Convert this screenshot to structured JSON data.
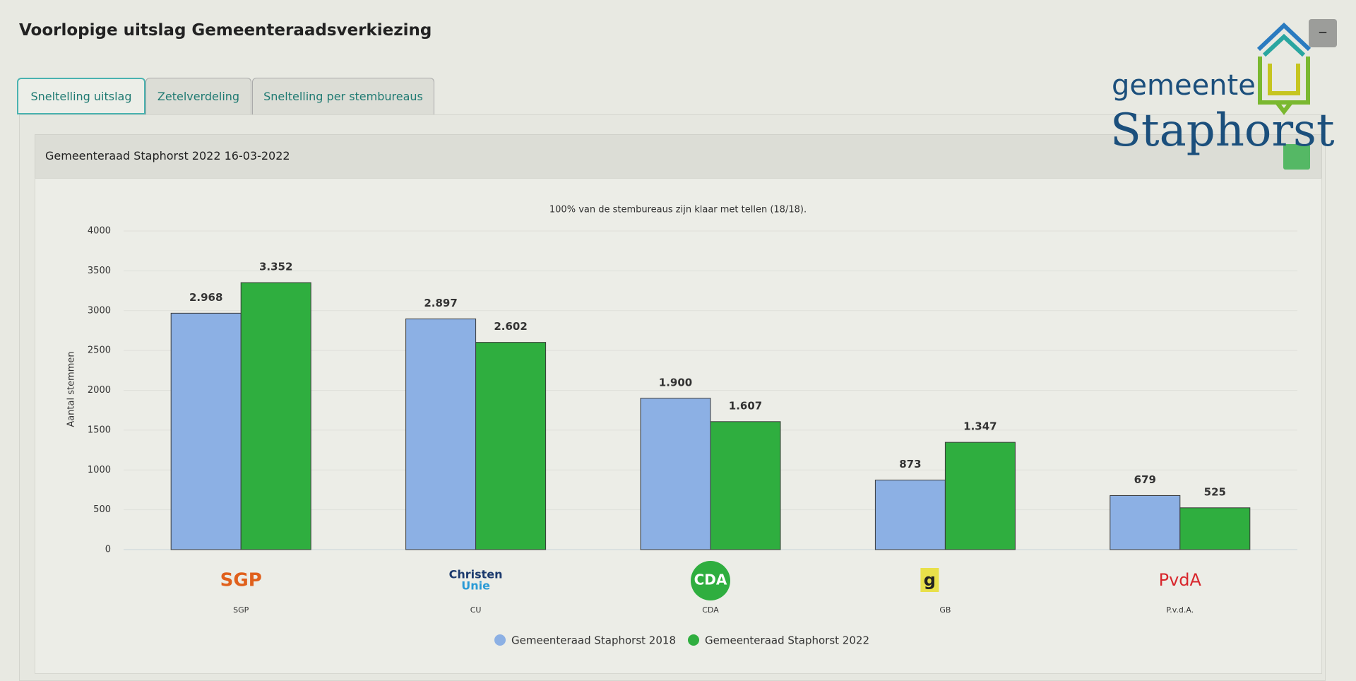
{
  "header": {
    "title": "Voorlopige uitslag Gemeenteraadsverkiezing"
  },
  "tabs": [
    "Sneltelling uitslag",
    "Zetelverdeling",
    "Sneltelling per stembureaus"
  ],
  "brand": {
    "line1": "gemeente",
    "line2": "Staphorst"
  },
  "panel": {
    "title": "Gemeenteraad Staphorst 2022 16-03-2022"
  },
  "chart_data": {
    "type": "bar",
    "subtitle": "100% van de stembureaus zijn klaar met tellen (18/18).",
    "y_label": "Aantal stemmen",
    "categories": [
      "SGP",
      "CU",
      "CDA",
      "GB",
      "P.v.d.A."
    ],
    "category_logos": [
      [
        "SGP"
      ],
      [
        "Christen",
        "Unie"
      ],
      [
        "CDA"
      ],
      [
        "g"
      ],
      [
        "PvdA"
      ]
    ],
    "series": [
      {
        "name": "Gemeenteraad Staphorst 2018",
        "color": "#8cb0e4",
        "values": [
          2968,
          2897,
          1900,
          873,
          679
        ],
        "value_labels": [
          "2.968",
          "2.897",
          "1.900",
          "873",
          "679"
        ]
      },
      {
        "name": "Gemeenteraad Staphorst 2022",
        "color": "#2fae3f",
        "values": [
          3352,
          2602,
          1607,
          1347,
          525
        ],
        "value_labels": [
          "3.352",
          "2.602",
          "1.607",
          "1.347",
          "525"
        ]
      }
    ],
    "ylim": [
      0,
      4000
    ],
    "yticks": [
      0,
      500,
      1000,
      1500,
      2000,
      2500,
      3000,
      3500,
      4000
    ],
    "grid": true,
    "legend": "bottom"
  }
}
